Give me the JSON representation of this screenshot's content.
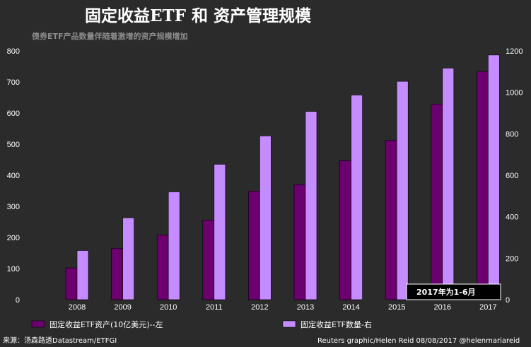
{
  "chart_data": {
    "type": "bar",
    "title": "固定收益ETF 和 资产管理规模",
    "subtitle": "债券ETF产品数量伴随着激增的资产规模增加",
    "categories": [
      "2008",
      "2009",
      "2010",
      "2011",
      "2012",
      "2013",
      "2014",
      "2015",
      "2016",
      "2017"
    ],
    "series": [
      {
        "name": "固定收益ETF资产(10亿美元)--左",
        "axis": "left",
        "color": "#6b006e",
        "values": [
          102,
          165,
          208,
          256,
          349,
          370,
          447,
          512,
          629,
          734
        ]
      },
      {
        "name": "固定收益ETF数量-右",
        "axis": "right",
        "color": "#c58cff",
        "values": [
          237,
          395,
          520,
          653,
          790,
          908,
          987,
          1053,
          1117,
          1180
        ]
      }
    ],
    "y_left": {
      "min": 0,
      "max": 800,
      "ticks": [
        0,
        100,
        200,
        300,
        400,
        500,
        600,
        700,
        800
      ]
    },
    "y_right": {
      "min": 0,
      "max": 1200,
      "ticks": [
        0,
        200,
        400,
        600,
        800,
        1000,
        1200
      ]
    },
    "annotation": "2017年为1-6月",
    "grid": false,
    "legend_position": "bottom"
  },
  "footer": {
    "source": "来源：汤森路透Datastream/ETFGI",
    "credit": "Reuters graphic/Helen Reid 08/08/2017  @helenmariareid"
  }
}
